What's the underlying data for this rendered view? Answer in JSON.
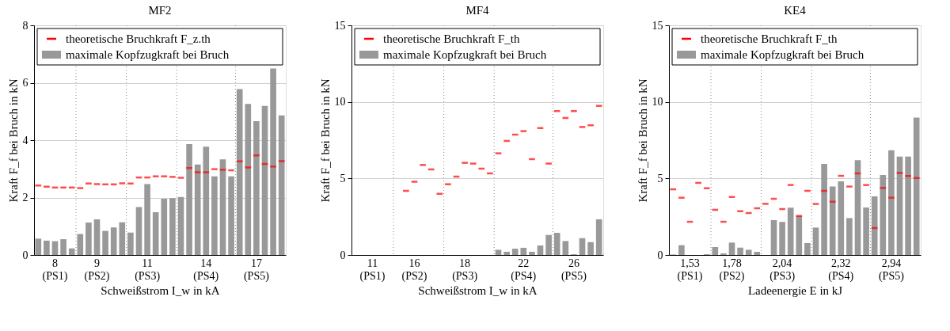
{
  "chart_data": [
    {
      "type": "bar",
      "title": "MF2",
      "xlabel": "Schweißstrom I_w in kA",
      "ylabel": "Kraft F_f bei Bruch in kN",
      "categories": [
        null,
        null,
        "8\n(PS1)",
        null,
        null,
        null,
        null,
        "9\n(PS2)",
        null,
        null,
        null,
        null,
        null,
        "11\n(PS3)",
        null,
        null,
        null,
        null,
        null,
        null,
        "14\n(PS4)",
        null,
        null,
        null,
        null,
        null,
        "17\n(PS5)",
        null,
        null,
        null
      ],
      "ylim": [
        0,
        8
      ],
      "yticks": [
        0,
        2,
        4,
        6,
        8
      ],
      "grid": "y",
      "legend": "top",
      "series": [
        {
          "name": "theoretische Bruchkraft F_z.th",
          "type": "scatter",
          "color": "#ff0000",
          "values": [
            2.42,
            2.38,
            2.35,
            2.35,
            2.35,
            2.33,
            2.49,
            2.47,
            2.46,
            2.46,
            2.5,
            2.49,
            2.7,
            2.7,
            2.74,
            2.74,
            2.72,
            2.69,
            3.03,
            2.88,
            2.88,
            2.99,
            2.97,
            2.95,
            3.26,
            3.05,
            3.47,
            3.17,
            3.08,
            3.27
          ]
        },
        {
          "name": "maximale Kopfzugkraft bei Bruch",
          "color": "#999999",
          "values": [
            0.57,
            0.5,
            0.48,
            0.55,
            0.23,
            0.73,
            1.13,
            1.24,
            0.84,
            0.96,
            1.14,
            0.78,
            1.67,
            2.47,
            1.49,
            1.96,
            1.98,
            2.02,
            3.86,
            3.15,
            3.77,
            2.74,
            3.33,
            2.74,
            5.78,
            5.26,
            4.66,
            5.19,
            6.5,
            4.86
          ]
        }
      ]
    },
    {
      "type": "bar",
      "title": "MF4",
      "xlabel": "Schweißstrom I_w in kA",
      "ylabel": "Kraft F_f bei Bruch in kN",
      "categories": [
        null,
        null,
        "11\n(PS1)",
        null,
        null,
        null,
        null,
        "16\n(PS2)",
        null,
        null,
        null,
        null,
        null,
        "18\n(PS3)",
        null,
        null,
        null,
        null,
        null,
        null,
        "22\n(PS4)",
        null,
        null,
        null,
        null,
        null,
        "26\n(PS5)",
        null,
        null,
        null
      ],
      "ylim": [
        0,
        15
      ],
      "yticks": [
        0,
        5,
        10,
        15
      ],
      "grid": "y",
      "legend": "top",
      "series": [
        {
          "name": "theoretische Bruchkraft F_th",
          "type": "scatter",
          "color": "#ff0000",
          "values": [
            null,
            null,
            null,
            null,
            null,
            null,
            4.19,
            4.79,
            5.88,
            5.59,
            4.0,
            4.62,
            5.12,
            6.02,
            5.97,
            5.64,
            5.33,
            6.64,
            7.45,
            7.86,
            8.09,
            6.26,
            8.29,
            5.97,
            9.4,
            8.95,
            9.4,
            8.36,
            8.47,
            9.74
          ]
        },
        {
          "name": "maximale Kopfzugkraft bei Bruch",
          "color": "#999999",
          "values": [
            null,
            null,
            null,
            null,
            null,
            0,
            0,
            0,
            0,
            0,
            0,
            0,
            0,
            0,
            0,
            0,
            0,
            0.34,
            0.21,
            0.41,
            0.47,
            0.21,
            0.62,
            1.31,
            1.45,
            0.91,
            0.05,
            1.1,
            0.84,
            2.33
          ]
        }
      ]
    },
    {
      "type": "bar",
      "title": "KE4",
      "xlabel": "Ladeenergie E in kJ",
      "ylabel": "Kraft F_f bei Bruch in kN",
      "categories": [
        null,
        null,
        "1,53\n(PS1)",
        null,
        null,
        null,
        null,
        "1,78\n(PS2)",
        null,
        null,
        null,
        null,
        null,
        "2,04\n(PS3)",
        null,
        null,
        null,
        null,
        null,
        null,
        "2,32\n(PS4)",
        null,
        null,
        null,
        null,
        null,
        "2,94\n(PS5)",
        null,
        null,
        null
      ],
      "ylim": [
        0,
        15
      ],
      "yticks": [
        0,
        5,
        10,
        15
      ],
      "grid": "y",
      "legend": "top",
      "series": [
        {
          "name": "theoretische Bruchkraft F_th",
          "type": "scatter",
          "color": "#ff0000",
          "values": [
            4.29,
            3.74,
            2.17,
            4.71,
            4.36,
            2.95,
            2.17,
            3.79,
            2.86,
            2.74,
            3.05,
            3.34,
            3.67,
            3.0,
            4.57,
            2.55,
            4.19,
            3.33,
            4.19,
            3.48,
            5.17,
            4.47,
            5.33,
            4.57,
            1.76,
            4.38,
            3.74,
            5.36,
            5.16,
            5.03
          ]
        },
        {
          "name": "maximale Kopfzugkraft bei Bruch",
          "color": "#999999",
          "values": [
            0.03,
            0.64,
            0,
            0,
            0.05,
            0.52,
            0.1,
            0.81,
            0.48,
            0.34,
            0.21,
            0,
            2.28,
            2.16,
            3.09,
            2.55,
            0.78,
            1.79,
            5.95,
            4.48,
            4.81,
            2.41,
            6.19,
            3.1,
            3.83,
            5.22,
            6.84,
            6.43,
            6.43,
            8.98
          ]
        }
      ]
    }
  ]
}
